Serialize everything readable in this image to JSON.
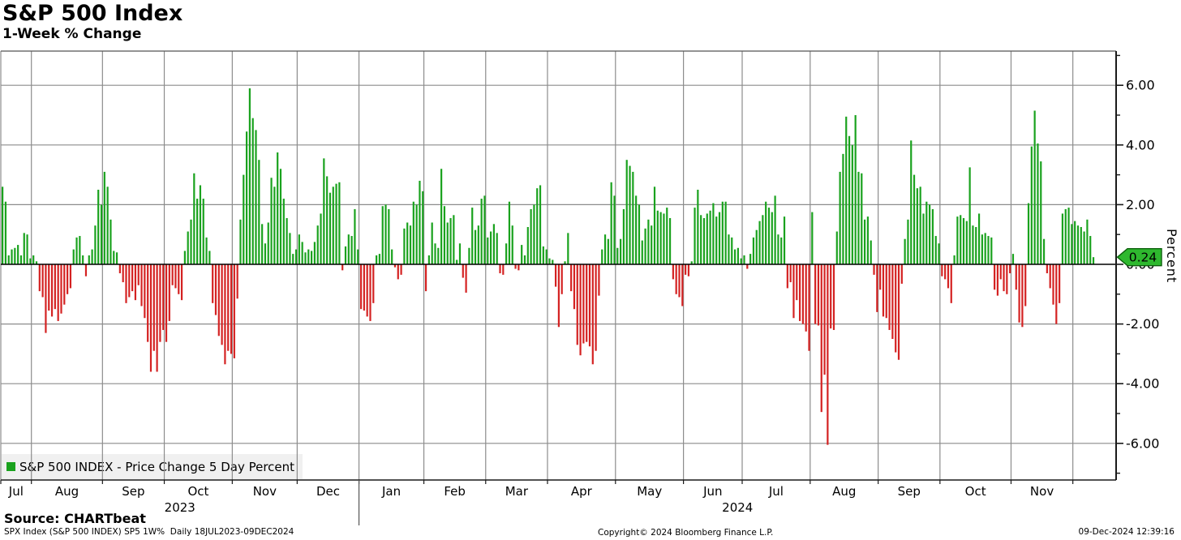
{
  "header": {
    "title": "S&P 500 Index",
    "subtitle": "1-Week % Change"
  },
  "legend": {
    "label": "S&P 500 INDEX - Price Change 5 Day Percent"
  },
  "axis": {
    "y_title": "Percent"
  },
  "footer": {
    "source": "Source: CHARTbeat",
    "ticker_line": "SPX Index (S&P 500 INDEX) SP5 1W%  Daily 18JUL2023-09DEC2024",
    "copyright": "Copyright© 2024 Bloomberg Finance L.P.",
    "timestamp": "09-Dec-2024 12:39:16"
  },
  "chart_data": {
    "type": "bar",
    "title": "S&P 500 Index — 1-Week % Change",
    "xlabel": "",
    "ylabel": "Percent",
    "ylim": [
      -7.2,
      7.2
    ],
    "grid": true,
    "legend_position": "bottom-left",
    "yticks_major": [
      6,
      4,
      2,
      0,
      -2,
      -4,
      -6
    ],
    "ytick_labels": [
      "6.00",
      "4.00",
      "2.00",
      "0.00",
      "-2.00",
      "-4.00",
      "-6.00"
    ],
    "yticks_minor": [
      7,
      5,
      3,
      1,
      -1,
      -3,
      -5,
      -7
    ],
    "last_value": "0.24",
    "last_value_num": 0.24,
    "colors": {
      "up": "#1aa21e",
      "down": "#d42222",
      "badge": "#2eb82e",
      "badge_border": "#0c5f0c",
      "grid": "#8c8c8c",
      "axis": "#1a1a1a",
      "zero_line": "#000000"
    },
    "years": [
      {
        "label": "2023"
      },
      {
        "label": "2024"
      }
    ],
    "series_name": "S&P 500 INDEX - Price Change 5 Day Percent",
    "months": [
      {
        "label": "Jul",
        "year": "2023",
        "values": [
          2.6,
          2.1,
          0.3,
          0.5,
          0.55,
          0.65,
          0.3,
          1.05,
          1.0,
          0.2
        ]
      },
      {
        "label": "Aug",
        "year": "2023",
        "values": [
          0.3,
          0.1,
          -0.9,
          -1.1,
          -2.3,
          -1.55,
          -1.75,
          -1.5,
          -1.9,
          -1.65,
          -1.35,
          -1.0,
          -0.8,
          0.5,
          0.9,
          0.95,
          0.3,
          -0.4,
          0.3,
          0.5,
          1.3,
          2.5,
          2.0
        ]
      },
      {
        "label": "Sep",
        "year": "2023",
        "values": [
          3.1,
          2.6,
          1.5,
          0.45,
          0.4,
          -0.3,
          -0.6,
          -1.3,
          -1.1,
          -0.9,
          -1.2,
          -0.7,
          -1.4,
          -1.8,
          -2.6,
          -3.6,
          -2.9,
          -3.6,
          -2.6,
          -2.2
        ]
      },
      {
        "label": "Oct",
        "year": "2023",
        "values": [
          -2.6,
          -1.9,
          -0.7,
          -0.8,
          -1.0,
          -1.2,
          0.45,
          1.1,
          1.5,
          3.05,
          2.2,
          2.65,
          2.2,
          0.9,
          0.45,
          -1.3,
          -1.7,
          -2.4,
          -2.7,
          -3.35,
          -2.9,
          -3.0
        ]
      },
      {
        "label": "Nov",
        "year": "2023",
        "values": [
          -3.15,
          -1.15,
          1.5,
          3.0,
          4.45,
          5.9,
          4.9,
          4.5,
          3.5,
          1.35,
          0.7,
          1.4,
          2.9,
          2.6,
          3.75,
          3.2,
          2.2,
          1.55,
          1.05,
          0.35,
          0.5
        ]
      },
      {
        "label": "Dec",
        "year": "2023",
        "values": [
          1.0,
          0.75,
          0.4,
          0.5,
          0.45,
          0.75,
          1.3,
          1.7,
          3.55,
          2.95,
          2.4,
          2.6,
          2.7,
          2.75,
          -0.2,
          0.6,
          1.0,
          0.95,
          1.85,
          0.5
        ]
      },
      {
        "label": "Jan",
        "year": "2024",
        "values": [
          -1.5,
          -1.55,
          -1.75,
          -1.9,
          -1.3,
          0.3,
          0.35,
          1.95,
          2.0,
          1.85,
          0.5,
          -0.1,
          -0.5,
          -0.35,
          1.2,
          1.4,
          1.3,
          2.1,
          2.0,
          2.8,
          2.45
        ]
      },
      {
        "label": "Feb",
        "year": "2024",
        "values": [
          -0.9,
          0.3,
          1.4,
          0.7,
          0.55,
          3.2,
          1.95,
          1.4,
          1.55,
          1.65,
          0.15,
          0.7,
          -0.45,
          -0.95,
          0.55,
          1.9,
          1.15,
          1.3,
          2.2,
          2.3
        ]
      },
      {
        "label": "Mar",
        "year": "2024",
        "values": [
          0.9,
          1.1,
          1.35,
          1.05,
          -0.3,
          -0.35,
          0.7,
          2.1,
          1.3,
          -0.15,
          -0.2,
          0.65,
          0.3,
          1.25,
          1.85,
          2.0,
          2.55,
          2.65,
          0.6,
          0.5
        ]
      },
      {
        "label": "Apr",
        "year": "2024",
        "values": [
          0.2,
          0.15,
          -0.75,
          -2.1,
          -1.0,
          0.1,
          1.05,
          -0.9,
          -1.5,
          -2.7,
          -3.05,
          -2.65,
          -2.6,
          -2.75,
          -3.35,
          -2.9,
          -1.05,
          0.5,
          1.0,
          0.85,
          2.75,
          2.3
        ]
      },
      {
        "label": "May",
        "year": "2024",
        "values": [
          0.55,
          0.85,
          1.85,
          3.5,
          3.3,
          3.1,
          2.3,
          2.0,
          0.8,
          1.2,
          1.5,
          1.3,
          2.6,
          1.8,
          1.75,
          1.7,
          1.9,
          1.55,
          -0.5,
          -1.0,
          -1.1,
          -1.4
        ]
      },
      {
        "label": "Jun",
        "year": "2024",
        "values": [
          -0.35,
          -0.4,
          0.1,
          1.9,
          2.5,
          1.65,
          1.55,
          1.7,
          1.8,
          2.05,
          1.6,
          1.75,
          2.1,
          2.1,
          1.0,
          0.9,
          0.5,
          0.55,
          0.2
        ]
      },
      {
        "label": "Jul",
        "year": "2024",
        "values": [
          0.3,
          -0.15,
          0.35,
          0.9,
          1.15,
          1.45,
          1.65,
          2.1,
          1.9,
          1.75,
          2.3,
          1.0,
          0.9,
          1.6,
          -0.8,
          -0.6,
          -1.8,
          -1.2,
          -1.9,
          -2.0,
          -2.25,
          -2.9
        ]
      },
      {
        "label": "Aug",
        "year": "2024",
        "values": [
          1.75,
          -2.0,
          -2.05,
          -4.95,
          -3.7,
          -6.05,
          -2.15,
          -2.2,
          1.1,
          3.1,
          3.7,
          4.95,
          4.3,
          4.0,
          5.0,
          3.1,
          3.05,
          1.5,
          1.6,
          0.8,
          -0.35,
          -1.6
        ]
      },
      {
        "label": "Sep",
        "year": "2024",
        "values": [
          -0.85,
          -1.75,
          -1.8,
          -2.2,
          -2.5,
          -2.95,
          -3.2,
          -0.65,
          0.85,
          1.5,
          4.15,
          3.0,
          2.55,
          2.6,
          1.7,
          2.1,
          2.0,
          1.85,
          0.95,
          0.7
        ]
      },
      {
        "label": "Oct",
        "year": "2024",
        "values": [
          -0.4,
          -0.5,
          -0.8,
          -1.3,
          0.3,
          1.6,
          1.65,
          1.55,
          1.45,
          3.25,
          1.3,
          1.25,
          1.7,
          1.0,
          1.05,
          0.95,
          0.9,
          -0.85,
          -1.05,
          -0.5,
          -0.9,
          -1.0,
          -0.3
        ]
      },
      {
        "label": "Nov",
        "year": "2024",
        "values": [
          0.35,
          -0.85,
          -1.95,
          -2.1,
          -1.4,
          2.05,
          3.95,
          5.15,
          4.05,
          3.45,
          0.85,
          -0.3,
          -0.8,
          -1.35,
          -2.0,
          -1.3,
          1.7,
          1.85,
          1.9,
          1.35
        ]
      },
      {
        "label": "",
        "year": "2024",
        "values": [
          1.45,
          1.3,
          1.25,
          1.1,
          1.5,
          0.95,
          0.24
        ]
      }
    ]
  }
}
